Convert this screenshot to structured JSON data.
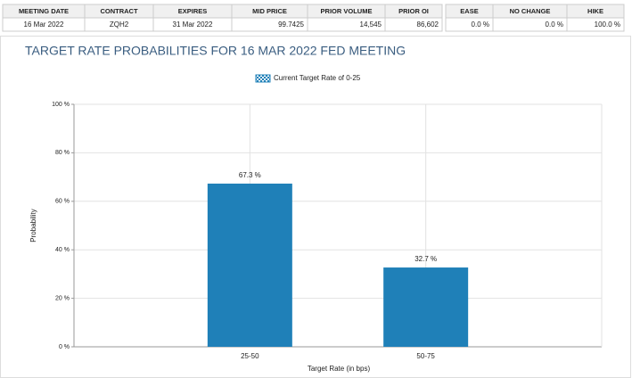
{
  "table": {
    "headers": [
      "MEETING DATE",
      "CONTRACT",
      "EXPIRES",
      "MID PRICE",
      "PRIOR VOLUME",
      "PRIOR OI",
      "EASE",
      "NO CHANGE",
      "HIKE"
    ],
    "rows": [
      [
        "16 Mar 2022",
        "ZQH2",
        "31 Mar 2022",
        "99.7425",
        "14,545",
        "86,602",
        "0.0 %",
        "0.0 %",
        "100.0 %"
      ]
    ]
  },
  "chart_data": {
    "type": "bar",
    "title": "TARGET RATE PROBABILITIES FOR 16 MAR 2022 FED MEETING",
    "xlabel": "Target Rate (in bps)",
    "ylabel": "Probability",
    "categories": [
      "25-50",
      "50-75"
    ],
    "series": [
      {
        "name": "Current Target Rate of 0-25",
        "color": "#1f80b8",
        "values": [
          67.3,
          32.7
        ],
        "value_labels": [
          "67.3 %",
          "32.7 %"
        ]
      }
    ],
    "ylim": [
      0,
      100
    ],
    "yticks": [
      {
        "value": 0,
        "label": "0 %"
      },
      {
        "value": 20,
        "label": "20 %"
      },
      {
        "value": 40,
        "label": "40 %"
      },
      {
        "value": 60,
        "label": "60 %"
      },
      {
        "value": 80,
        "label": "80 %"
      },
      {
        "value": 100,
        "label": "100 %"
      }
    ],
    "grid": true,
    "legend": "top"
  }
}
